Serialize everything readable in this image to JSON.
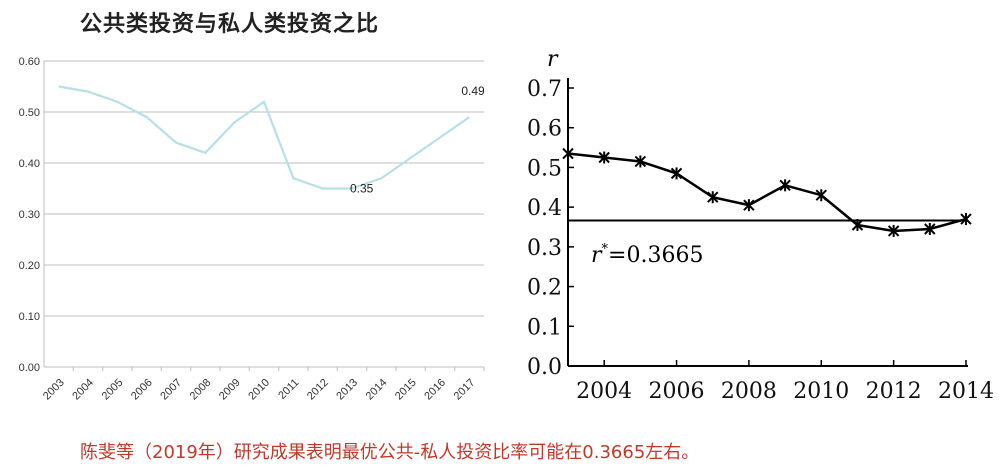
{
  "colors": {
    "left_line": "#b7dfe8",
    "grid": "#bfbfbf",
    "right_line": "#000000",
    "caption": "#c0392b"
  },
  "chart_data": [
    {
      "type": "line",
      "title": "公共类投资与私人类投资之比",
      "x": [
        "2003",
        "2004",
        "2005",
        "2006",
        "2007",
        "2008",
        "2009",
        "2010",
        "2011",
        "2012",
        "2013",
        "2014",
        "2015",
        "2016",
        "2017"
      ],
      "values": [
        0.55,
        0.54,
        0.52,
        0.49,
        0.44,
        0.42,
        0.48,
        0.52,
        0.37,
        0.35,
        0.35,
        0.37,
        0.41,
        0.45,
        0.49
      ],
      "ylim": [
        0,
        0.6
      ],
      "yticks": [
        "0.60",
        "0.50",
        "0.40",
        "0.30",
        "0.20",
        "0.10",
        "0.00"
      ],
      "annotations": [
        {
          "text": "0.49",
          "x": "2017"
        },
        {
          "text": "0.35",
          "x": "2013"
        }
      ],
      "grid": true
    },
    {
      "type": "line",
      "ylabel": "r",
      "x": [
        2003,
        2004,
        2005,
        2006,
        2007,
        2008,
        2009,
        2010,
        2011,
        2012,
        2013,
        2014
      ],
      "values": [
        0.535,
        0.525,
        0.515,
        0.485,
        0.425,
        0.405,
        0.455,
        0.43,
        0.355,
        0.34,
        0.345,
        0.37
      ],
      "xticks": [
        "2004",
        "2006",
        "2008",
        "2010",
        "2012",
        "2014"
      ],
      "yticks": [
        "0.7",
        "0.6",
        "0.5",
        "0.4",
        "0.3",
        "0.2",
        "0.1",
        "0.0"
      ],
      "xlim": [
        2003,
        2014
      ],
      "ylim": [
        0,
        0.7
      ],
      "reference_line": 0.3665,
      "reference_label": {
        "r": "r",
        "sup": "*",
        "rest": "=0.3665"
      },
      "marker": "asterisk"
    }
  ],
  "caption": "陈斐等（2019年）研究成果表明最优公共-私人投资比率可能在0.3665左右。"
}
